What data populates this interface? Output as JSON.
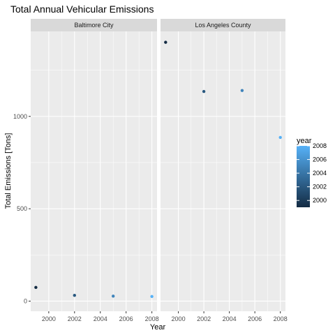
{
  "chart_data": {
    "type": "scatter",
    "title": "Total Annual Vehicular Emissions",
    "xlabel": "Year",
    "ylabel": "Total Emissions [Tons]",
    "xlim": [
      1998.6,
      2008.4
    ],
    "ylim": [
      -55,
      1460
    ],
    "x_ticks": [
      "2000",
      "2002",
      "2004",
      "2006",
      "2008"
    ],
    "y_ticks": [
      "0",
      "500",
      "1000"
    ],
    "grid": true,
    "legend": {
      "title": "year",
      "placement": "right",
      "type": "colorbar",
      "labels": [
        "2008",
        "2006",
        "2004",
        "2002",
        "2000"
      ]
    },
    "colors": {
      "low": "#132b43",
      "high": "#56b1f7",
      "panel": "#ebebeb",
      "strip": "#d9d9d9"
    },
    "panels": [
      {
        "name": "Baltimore City",
        "points": [
          {
            "x": 1999,
            "y": 74
          },
          {
            "x": 2002,
            "y": 31
          },
          {
            "x": 2005,
            "y": 27
          },
          {
            "x": 2008,
            "y": 25
          }
        ]
      },
      {
        "name": "Los Angeles County",
        "points": [
          {
            "x": 1999,
            "y": 1401
          },
          {
            "x": 2002,
            "y": 1135
          },
          {
            "x": 2005,
            "y": 1140
          },
          {
            "x": 2008,
            "y": 886
          }
        ]
      }
    ]
  }
}
